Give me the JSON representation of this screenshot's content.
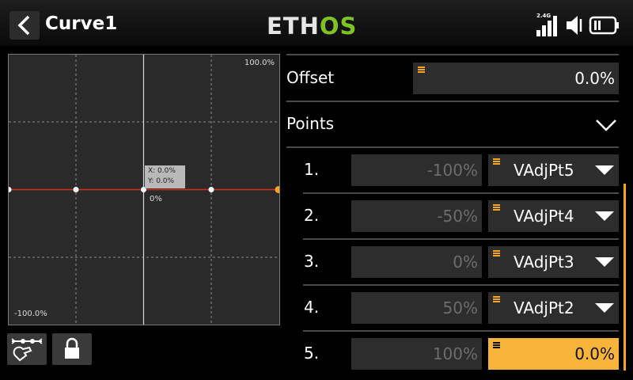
{
  "header": {
    "back_icon": "chevron-left-icon",
    "title": "Curve1",
    "logo_left": "ETH",
    "logo_right": "OS",
    "rf_label": "2.4G"
  },
  "graph": {
    "max_label": "100.0%",
    "min_label": "-100.0%",
    "zero_label": "0%",
    "cursor_x": "X: 0.0%",
    "cursor_y": "Y: 0.0%"
  },
  "tools": {
    "snap_icon": "magnet-snap-icon",
    "lock_icon": "lock-icon"
  },
  "offset": {
    "label": "Offset",
    "value": "0.0%"
  },
  "points": {
    "label": "Points",
    "items": [
      {
        "index": "1.",
        "x": "-100%",
        "source": "VAdjPt5"
      },
      {
        "index": "2.",
        "x": "-50%",
        "source": "VAdjPt4"
      },
      {
        "index": "3.",
        "x": "0%",
        "source": "VAdjPt3"
      },
      {
        "index": "4.",
        "x": "50%",
        "source": "VAdjPt2"
      },
      {
        "index": "5.",
        "x": "100%",
        "source": "0.0%"
      }
    ]
  },
  "colors": {
    "accent": "#f5a623",
    "curve": "#d62b1f",
    "logo_green": "#7ec321"
  }
}
